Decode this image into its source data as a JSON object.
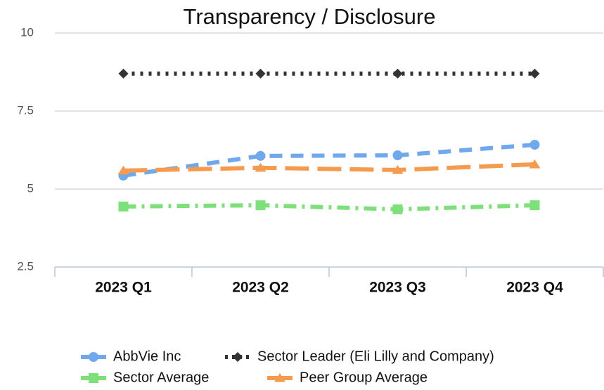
{
  "chart_data": {
    "type": "line",
    "title": "Transparency / Disclosure",
    "categories": [
      "2023 Q1",
      "2023 Q2",
      "2023 Q3",
      "2023 Q4"
    ],
    "series": [
      {
        "name": "AbbVie Inc",
        "color": "#6fa8ec",
        "marker": "circle",
        "line_style": "dashed",
        "values": [
          5.43,
          6.06,
          6.08,
          6.42
        ]
      },
      {
        "name": "Sector Leader (Eli Lilly and Company)",
        "color": "#333333",
        "marker": "diamond",
        "line_style": "dotted",
        "values": [
          8.7,
          8.7,
          8.7,
          8.7
        ]
      },
      {
        "name": "Sector Average",
        "color": "#7ee07a",
        "marker": "square",
        "line_style": "dashdot",
        "values": [
          4.44,
          4.48,
          4.35,
          4.48
        ]
      },
      {
        "name": "Peer Group Average",
        "color": "#f59b4f",
        "marker": "triangle",
        "line_style": "longdash",
        "values": [
          5.59,
          5.68,
          5.61,
          5.79
        ]
      }
    ],
    "ylim": [
      2.5,
      10
    ],
    "yticks": [
      2.5,
      5,
      7.5,
      10
    ],
    "grid": true,
    "legend": "bottom"
  }
}
